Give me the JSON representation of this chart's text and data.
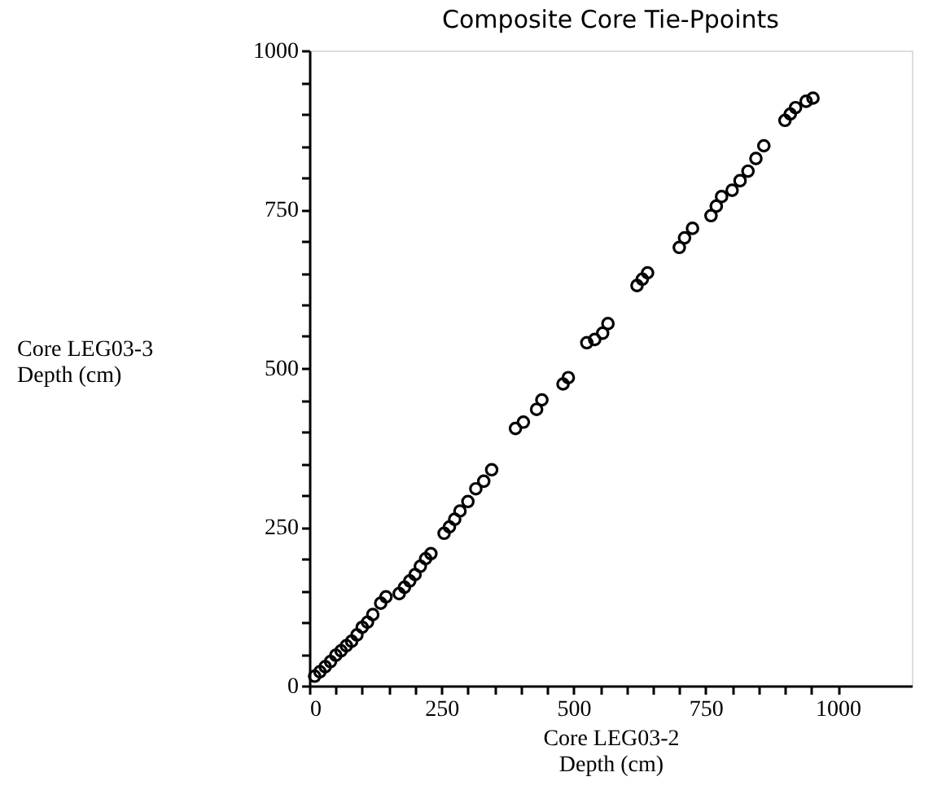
{
  "chart_data": {
    "type": "scatter",
    "title": "Composite Core Tie-Ppoints",
    "xlabel": "Core LEG03-2\nDepth (cm)",
    "ylabel": "Core LEG03-3\nDepth (cm)",
    "marker": "circle",
    "grid": false,
    "xlim": [
      0,
      1140
    ],
    "ylim": [
      0,
      1000
    ],
    "xticks": [
      0,
      {
        "value": 50,
        "label": null
      },
      {
        "value": 100,
        "label": null
      },
      {
        "value": 150,
        "label": null
      },
      {
        "value": 200,
        "label": null
      },
      250,
      {
        "value": 300,
        "label": null
      },
      {
        "value": 350,
        "label": null
      },
      {
        "value": 400,
        "label": null
      },
      {
        "value": 450,
        "label": null
      },
      500,
      {
        "value": 550,
        "label": null
      },
      {
        "value": 600,
        "label": null
      },
      {
        "value": 650,
        "label": null
      },
      {
        "value": 700,
        "label": null
      },
      750,
      {
        "value": 800,
        "label": null
      },
      {
        "value": 850,
        "label": null
      },
      {
        "value": 900,
        "label": null
      },
      {
        "value": 950,
        "label": null
      },
      1000
    ],
    "yticks": [
      0,
      {
        "value": 50,
        "label": null
      },
      {
        "value": 100,
        "label": null
      },
      {
        "value": 150,
        "label": null
      },
      {
        "value": 200,
        "label": null
      },
      250,
      {
        "value": 300,
        "label": null
      },
      {
        "value": 350,
        "label": null
      },
      {
        "value": 400,
        "label": null
      },
      {
        "value": 450,
        "label": null
      },
      500,
      {
        "value": 550,
        "label": null
      },
      {
        "value": 600,
        "label": null
      },
      {
        "value": 650,
        "label": null
      },
      {
        "value": 700,
        "label": null
      },
      750,
      {
        "value": 800,
        "label": null
      },
      {
        "value": 850,
        "label": null
      },
      {
        "value": 900,
        "label": null
      },
      {
        "value": 950,
        "label": null
      },
      1000
    ],
    "x": [
      10,
      20,
      30,
      40,
      50,
      60,
      70,
      80,
      90,
      100,
      110,
      120,
      135,
      145,
      170,
      180,
      190,
      200,
      210,
      220,
      230,
      255,
      265,
      275,
      285,
      300,
      315,
      330,
      345,
      390,
      405,
      430,
      440,
      480,
      490,
      525,
      540,
      555,
      565,
      620,
      630,
      640,
      700,
      710,
      725,
      760,
      770,
      780,
      800,
      815,
      830,
      845,
      860,
      900,
      910,
      920,
      940,
      953
    ],
    "series": [
      {
        "color": "#000000",
        "values": [
          15,
          22,
          30,
          38,
          48,
          55,
          63,
          70,
          80,
          92,
          100,
          112,
          130,
          140,
          145,
          155,
          165,
          175,
          188,
          200,
          208,
          240,
          250,
          262,
          275,
          290,
          310,
          322,
          340,
          405,
          415,
          435,
          450,
          475,
          485,
          540,
          545,
          555,
          570,
          630,
          640,
          650,
          690,
          705,
          720,
          740,
          755,
          770,
          780,
          795,
          810,
          830,
          850,
          890,
          900,
          910,
          920,
          925
        ]
      }
    ]
  }
}
